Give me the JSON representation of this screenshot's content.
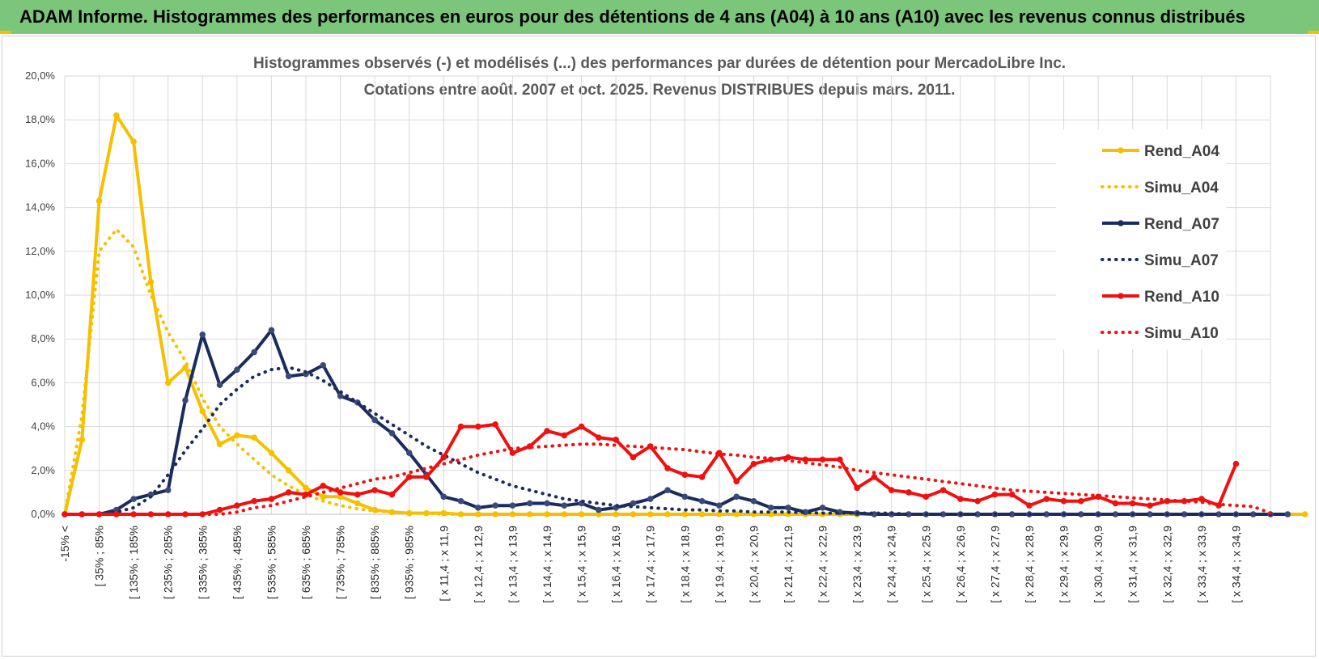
{
  "banner": {
    "title": "ADAM Informe. Histogrammes des performances en euros pour des détentions de 4 ans (A04) à 10 ans (A10) avec les revenus connus distribués"
  },
  "chart_data": {
    "type": "line",
    "title": "Histogrammes observés (-) et modélisés (...) des performances par durées de détention pour MercadoLibre Inc.",
    "subtitle": "Cotations entre août. 2007 et oct. 2025.  Revenus DISTRIBUES depuis mars. 2011.",
    "xlabel": "",
    "ylabel": "",
    "ylim": [
      0,
      20
    ],
    "y_ticks": [
      "0,0%",
      "2,0%",
      "4,0%",
      "6,0%",
      "8,0%",
      "10,0%",
      "12,0%",
      "14,0%",
      "16,0%",
      "18,0%",
      "20,0%"
    ],
    "grid": true,
    "legend_position": "right",
    "x_labels": [
      "-15% <",
      "[ 35% ; 85%",
      "[ 135% ; 185%",
      "[ 235% ; 285%",
      "[ 335% ; 385%",
      "[ 435% ; 485%",
      "[ 535% ; 585%",
      "[ 635% ; 685%",
      "[ 735% ; 785%",
      "[ 835% ; 885%",
      "[ 935% ; 985%",
      "[ x 11,4 ; x 11,9",
      "[ x 12,4 ; x 12,9",
      "[ x 13,4 ; x 13,9",
      "[ x 14,4 ; x 14,9",
      "[ x 15,4 ; x 15,9",
      "[ x 16,4 ; x 16,9",
      "[ x 17,4 ; x 17,9",
      "[ x 18,4 ; x 18,9",
      "[ x 19,4 ; x 19,9",
      "[ x 20,4 ; x 20,9",
      "[ x 21,4 ; x 21,9",
      "[ x 22,4 ; x 22,9",
      "[ x 23,4 ; x 23,9",
      "[ x 24,4 ; x 24,9",
      "[ x 25,4 ; x 25,9",
      "[ x 26,4 ; x 26,9",
      "[ x 27,4 ; x 27,9",
      "[ x 28,4 ; x 28,9",
      "[ x 29,4 ; x 29,9",
      "[ x 30,4 ; x 30,9",
      "[ x 31,4 ; x 31,9",
      "[ x 32,4 ; x 32,9",
      "[ x 33,4 ; x 33,9",
      "[ x 34,4 ; x 34,9"
    ],
    "series": [
      {
        "name": "Rend_A04",
        "style": "solid",
        "markers": true,
        "color": "#f5c000",
        "values": [
          0,
          3.4,
          14.3,
          18.2,
          17.0,
          10.6,
          6.0,
          6.7,
          4.7,
          3.2,
          3.6,
          3.5,
          2.8,
          2.0,
          1.2,
          0.8,
          0.8,
          0.5,
          0.2,
          0.1,
          0.05,
          0.05,
          0.05,
          0,
          0,
          0,
          0,
          0,
          0,
          0,
          0,
          0,
          0,
          0,
          0,
          0,
          0,
          0,
          0,
          0,
          0,
          0,
          0,
          0,
          0,
          0,
          0,
          0,
          0,
          0,
          0,
          0,
          0,
          0,
          0,
          0,
          0,
          0,
          0,
          0,
          0,
          0,
          0,
          0,
          0,
          0,
          0,
          0,
          0,
          0,
          0,
          0,
          0
        ]
      },
      {
        "name": "Simu_A04",
        "style": "dotted",
        "markers": false,
        "color": "#f5c000",
        "values": [
          0,
          4.5,
          12.0,
          13.0,
          12.2,
          10.0,
          8.3,
          7.0,
          5.3,
          4.0,
          3.2,
          2.5,
          1.8,
          1.3,
          0.9,
          0.6,
          0.4,
          0.25,
          0.15,
          0.1,
          0.05,
          0.05,
          0,
          0,
          0,
          0,
          0,
          0,
          0,
          0,
          0,
          0,
          0,
          0,
          0,
          0,
          0,
          0,
          0,
          0,
          0,
          0,
          0,
          0,
          0,
          0,
          0,
          0,
          0,
          0,
          0,
          0,
          0,
          0,
          0,
          0,
          0,
          0,
          0,
          0,
          0,
          0,
          0,
          0,
          0,
          0,
          0,
          0,
          0,
          0,
          0
        ]
      },
      {
        "name": "Rend_A07",
        "style": "solid",
        "markers": true,
        "color": "#1a2b5e",
        "values": [
          0,
          0,
          0,
          0.2,
          0.7,
          0.9,
          1.1,
          5.2,
          8.2,
          5.9,
          6.6,
          7.4,
          8.4,
          6.3,
          6.4,
          6.8,
          5.4,
          5.1,
          4.3,
          3.7,
          2.8,
          1.8,
          0.8,
          0.6,
          0.3,
          0.4,
          0.4,
          0.5,
          0.5,
          0.4,
          0.5,
          0.2,
          0.3,
          0.5,
          0.7,
          1.1,
          0.8,
          0.6,
          0.4,
          0.8,
          0.6,
          0.3,
          0.3,
          0.1,
          0.3,
          0.1,
          0.05,
          0,
          0,
          0,
          0,
          0,
          0,
          0,
          0,
          0,
          0,
          0,
          0,
          0,
          0,
          0,
          0,
          0,
          0,
          0,
          0,
          0,
          0,
          0,
          0,
          0
        ]
      },
      {
        "name": "Simu_A07",
        "style": "dotted",
        "markers": false,
        "color": "#1a2b5e",
        "values": [
          0,
          0,
          0,
          0.1,
          0.3,
          0.8,
          1.8,
          2.9,
          3.9,
          5.0,
          5.7,
          6.3,
          6.6,
          6.7,
          6.5,
          6.1,
          5.6,
          5.1,
          4.6,
          4.1,
          3.6,
          3.1,
          2.7,
          2.3,
          1.9,
          1.6,
          1.3,
          1.1,
          0.9,
          0.7,
          0.6,
          0.5,
          0.4,
          0.35,
          0.3,
          0.25,
          0.2,
          0.2,
          0.15,
          0.15,
          0.1,
          0.1,
          0.1,
          0.08,
          0.05,
          0.05,
          0.05,
          0.05,
          0.05,
          0,
          0,
          0,
          0,
          0,
          0,
          0,
          0,
          0,
          0,
          0,
          0,
          0,
          0,
          0,
          0,
          0,
          0,
          0,
          0,
          0,
          0
        ]
      },
      {
        "name": "Rend_A10",
        "style": "solid",
        "markers": true,
        "color": "#f01010",
        "values": [
          0,
          0,
          0,
          0,
          0,
          0,
          0,
          0,
          0,
          0.2,
          0.4,
          0.6,
          0.7,
          1.0,
          0.9,
          1.3,
          1.0,
          0.9,
          1.1,
          0.9,
          1.7,
          1.7,
          2.6,
          4.0,
          4.0,
          4.1,
          2.8,
          3.1,
          3.8,
          3.6,
          4.0,
          3.5,
          3.4,
          2.6,
          3.1,
          2.1,
          1.8,
          1.7,
          2.8,
          1.5,
          2.3,
          2.5,
          2.6,
          2.5,
          2.5,
          2.5,
          1.2,
          1.7,
          1.1,
          1.0,
          0.8,
          1.1,
          0.7,
          0.6,
          0.9,
          0.9,
          0.4,
          0.7,
          0.6,
          0.6,
          0.8,
          0.5,
          0.5,
          0.4,
          0.6,
          0.6,
          0.7,
          0.4,
          2.3
        ]
      },
      {
        "name": "Simu_A10",
        "style": "dotted",
        "markers": false,
        "color": "#f01010",
        "values": [
          0,
          0,
          0,
          0,
          0,
          0,
          0,
          0,
          0,
          0,
          0.1,
          0.3,
          0.4,
          0.6,
          0.8,
          1.0,
          1.2,
          1.4,
          1.6,
          1.7,
          1.9,
          2.1,
          2.3,
          2.5,
          2.7,
          2.85,
          3.0,
          3.05,
          3.1,
          3.15,
          3.2,
          3.2,
          3.15,
          3.1,
          3.05,
          3.0,
          2.95,
          2.85,
          2.75,
          2.7,
          2.6,
          2.55,
          2.45,
          2.35,
          2.25,
          2.15,
          2.0,
          1.9,
          1.8,
          1.7,
          1.6,
          1.5,
          1.4,
          1.3,
          1.2,
          1.1,
          1.05,
          1.0,
          0.95,
          0.9,
          0.85,
          0.8,
          0.75,
          0.7,
          0.65,
          0.6,
          0.55,
          0.45,
          0.4,
          0.35,
          0.05
        ]
      }
    ]
  }
}
